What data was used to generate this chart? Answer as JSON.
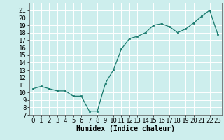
{
  "x": [
    0,
    1,
    2,
    3,
    4,
    5,
    6,
    7,
    8,
    9,
    10,
    11,
    12,
    13,
    14,
    15,
    16,
    17,
    18,
    19,
    20,
    21,
    22,
    23
  ],
  "y": [
    10.5,
    10.8,
    10.5,
    10.2,
    10.2,
    9.5,
    9.5,
    7.5,
    7.5,
    11.2,
    13.0,
    15.8,
    17.2,
    17.5,
    18.0,
    19.0,
    19.2,
    18.8,
    18.0,
    18.5,
    19.3,
    20.2,
    21.0,
    17.8
  ],
  "xlabel": "Humidex (Indice chaleur)",
  "xlim": [
    -0.5,
    23.5
  ],
  "ylim": [
    7,
    22
  ],
  "yticks": [
    7,
    8,
    9,
    10,
    11,
    12,
    13,
    14,
    15,
    16,
    17,
    18,
    19,
    20,
    21
  ],
  "xticks": [
    0,
    1,
    2,
    3,
    4,
    5,
    6,
    7,
    8,
    9,
    10,
    11,
    12,
    13,
    14,
    15,
    16,
    17,
    18,
    19,
    20,
    21,
    22,
    23
  ],
  "line_color": "#1a7a6e",
  "marker_color": "#1a7a6e",
  "bg_color": "#cdeeed",
  "grid_color": "#ffffff",
  "label_fontsize": 7,
  "tick_fontsize": 6.5,
  "linewidth": 0.9,
  "markersize": 2.0
}
